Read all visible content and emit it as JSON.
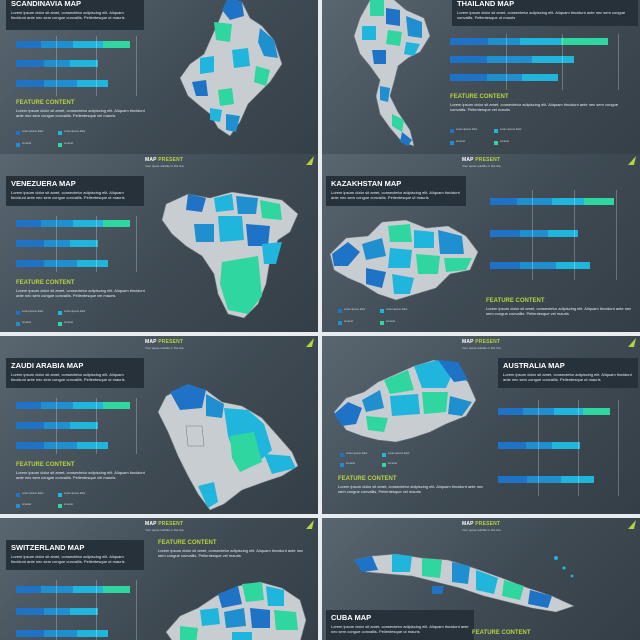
{
  "brand": {
    "word": "MAP",
    "highlight": "PRESENT",
    "tagline": "Your quote subtitle in this line"
  },
  "colors": {
    "blue": "#1f73c6",
    "mid_blue": "#1f8fd0",
    "cyan": "#1fb5dc",
    "green": "#2fd6a0",
    "bg": "#414d56",
    "accent": "#b6d33f"
  },
  "bar_segments": [
    "#1f73c6",
    "#1f8fd0",
    "#1fb5dc",
    "#2fd6a0"
  ],
  "lorem_short": "Lorem ipsum dolor sit amet, consectetur adipiscing elit. Aliquam tincidunt ante nec sem congue convallis. Pellentesque ut mauris",
  "lorem_long": "Lorem ipsum dolor sit amet, consectetur adipiscing elit. Aliquam tincidunt ante nec sem congue convallis. Pellentesque vel mauris",
  "legend_text": [
    "Lorem ipsum dolor",
    "sit amet"
  ],
  "slides": [
    {
      "title": "SCANDINAVIA MAP",
      "feature": "FEATURE CONTENT"
    },
    {
      "title": "THAILAND MAP",
      "feature": "FEATURE CONTENT"
    },
    {
      "title": "VENEZUERA MAP",
      "feature": "FEATURE CONTENT"
    },
    {
      "title": "KAZAKHSTAN MAP",
      "feature": "FEATURE CONTENT"
    },
    {
      "title": "ZAUDI ARABIA MAP",
      "feature": "FEATURE CONTENT"
    },
    {
      "title": "AUSTRALIA MAP",
      "feature": "FEATURE CONTENT"
    },
    {
      "title": "SWITZERLAND MAP",
      "feature": "FEATURE CONTENT"
    },
    {
      "title": "CUBA MAP",
      "feature": "FEATURE CONTENT"
    }
  ]
}
